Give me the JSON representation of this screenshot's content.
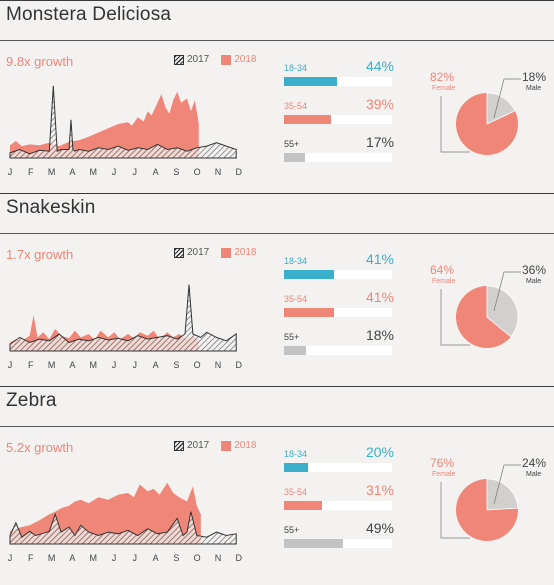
{
  "legend": {
    "label_2017": "2017",
    "label_2018": "2018"
  },
  "months": [
    "J",
    "F",
    "M",
    "A",
    "M",
    "J",
    "J",
    "A",
    "S",
    "O",
    "N",
    "D"
  ],
  "colors": {
    "accent_2018": "#ef8677",
    "age_18_34": "#3aaecb",
    "age_35_54": "#ef8677",
    "age_55_plus": "#c3c3c3",
    "female": "#ef8677",
    "male": "#d2d0ce"
  },
  "sections": [
    {
      "title": "Monstera Deliciosa",
      "growth": "9.8x growth",
      "ages": [
        {
          "label": "18-34",
          "pct": "44%",
          "value": 44
        },
        {
          "label": "35-54",
          "pct": "39%",
          "value": 39
        },
        {
          "label": "55+",
          "pct": "17%",
          "value": 17
        }
      ],
      "gender": {
        "female_pct": "82%",
        "female_label": "Female",
        "female_value": 82,
        "male_pct": "18%",
        "male_label": "Male",
        "male_value": 18
      }
    },
    {
      "title": "Snakeskin",
      "growth": "1.7x growth",
      "ages": [
        {
          "label": "18-34",
          "pct": "41%",
          "value": 41
        },
        {
          "label": "35-54",
          "pct": "41%",
          "value": 41
        },
        {
          "label": "55+",
          "pct": "18%",
          "value": 18
        }
      ],
      "gender": {
        "female_pct": "64%",
        "female_label": "Female",
        "female_value": 64,
        "male_pct": "36%",
        "male_label": "Male",
        "male_value": 36
      }
    },
    {
      "title": "Zebra",
      "growth": "5.2x growth",
      "ages": [
        {
          "label": "18-34",
          "pct": "20%",
          "value": 20
        },
        {
          "label": "35-54",
          "pct": "31%",
          "value": 31
        },
        {
          "label": "55+",
          "pct": "49%",
          "value": 49
        }
      ],
      "gender": {
        "female_pct": "76%",
        "female_label": "Female",
        "female_value": 76,
        "male_pct": "24%",
        "male_label": "Male",
        "male_value": 24
      }
    }
  ],
  "chart_data": [
    {
      "type": "area",
      "x_domain": [
        0,
        12
      ],
      "ylim": [
        0,
        100
      ],
      "series": [
        {
          "name": "2017",
          "x": [
            0,
            0.5,
            1,
            1.5,
            2,
            2.2,
            2.4,
            2.6,
            3,
            3.1,
            3.2,
            3.3,
            3.5,
            4,
            4.5,
            5,
            5.5,
            6,
            6.5,
            7,
            7.5,
            8,
            8.5,
            9,
            9.5,
            10,
            10.5,
            11,
            11.5
          ],
          "values": [
            6,
            10,
            5,
            9,
            8,
            85,
            8,
            10,
            10,
            45,
            10,
            8,
            10,
            8,
            12,
            10,
            14,
            9,
            12,
            10,
            16,
            10,
            12,
            8,
            12,
            14,
            18,
            14,
            10
          ]
        },
        {
          "name": "2018",
          "x": [
            0,
            0.3,
            0.6,
            1,
            1.5,
            2,
            2.5,
            3,
            3.5,
            4,
            4.5,
            5,
            5.5,
            6,
            6.2,
            6.5,
            6.8,
            7,
            7.2,
            7.5,
            7.7,
            7.9,
            8.1,
            8.3,
            8.5,
            8.7,
            9,
            9.2,
            9.4,
            9.6
          ],
          "values": [
            15,
            20,
            14,
            16,
            15,
            18,
            14,
            19,
            21,
            25,
            30,
            35,
            40,
            42,
            38,
            48,
            43,
            55,
            50,
            65,
            75,
            60,
            52,
            68,
            78,
            65,
            70,
            55,
            68,
            40
          ]
        }
      ]
    },
    {
      "type": "area",
      "x_domain": [
        0,
        12
      ],
      "ylim": [
        0,
        100
      ],
      "series": [
        {
          "name": "2017",
          "x": [
            0,
            0.5,
            1,
            1.5,
            2,
            2.5,
            3,
            3.5,
            4,
            4.5,
            5,
            5.5,
            6,
            6.5,
            7,
            7.5,
            8,
            8.5,
            8.9,
            9.1,
            9.3,
            9.7,
            10,
            10.5,
            11,
            11.5
          ],
          "values": [
            8,
            16,
            10,
            14,
            12,
            20,
            10,
            14,
            12,
            16,
            13,
            15,
            12,
            18,
            14,
            16,
            18,
            14,
            20,
            78,
            20,
            16,
            22,
            16,
            12,
            20
          ]
        },
        {
          "name": "2018",
          "x": [
            0,
            0.3,
            0.6,
            1,
            1.2,
            1.4,
            1.7,
            2,
            2.3,
            2.6,
            3,
            3.3,
            3.6,
            4,
            4.3,
            4.6,
            5,
            5.3,
            5.6,
            6,
            6.3,
            6.6,
            7,
            7.3,
            7.6,
            8,
            8.3,
            8.6,
            9,
            9.3,
            9.6
          ],
          "values": [
            10,
            14,
            12,
            18,
            42,
            16,
            22,
            14,
            26,
            18,
            15,
            24,
            16,
            20,
            13,
            24,
            16,
            22,
            14,
            20,
            15,
            22,
            18,
            24,
            14,
            22,
            16,
            20,
            14,
            18,
            12
          ]
        }
      ]
    },
    {
      "type": "area",
      "x_domain": [
        0,
        12
      ],
      "ylim": [
        0,
        100
      ],
      "series": [
        {
          "name": "2017",
          "x": [
            0,
            0.3,
            0.6,
            1,
            1.3,
            1.6,
            2,
            2.3,
            2.6,
            3,
            3.3,
            3.6,
            4,
            4.5,
            5,
            5.5,
            6,
            6.5,
            7,
            7.5,
            8,
            8.5,
            8.8,
            9,
            9.2,
            9.5,
            10,
            10.5,
            11,
            11.5
          ],
          "values": [
            10,
            25,
            8,
            15,
            10,
            12,
            15,
            35,
            14,
            20,
            10,
            22,
            14,
            10,
            14,
            12,
            16,
            10,
            18,
            12,
            14,
            30,
            10,
            14,
            38,
            10,
            8,
            14,
            10,
            12
          ]
        },
        {
          "name": "2018",
          "x": [
            0,
            0.3,
            0.6,
            1,
            1.5,
            2,
            2.3,
            2.6,
            3,
            3.3,
            3.6,
            4,
            4.5,
            5,
            5.5,
            6,
            6.3,
            6.6,
            7,
            7.3,
            7.6,
            8,
            8.3,
            8.6,
            9,
            9.3,
            9.5,
            9.7
          ],
          "values": [
            15,
            18,
            20,
            22,
            28,
            35,
            38,
            42,
            45,
            50,
            52,
            48,
            55,
            52,
            58,
            60,
            55,
            70,
            62,
            65,
            58,
            72,
            60,
            55,
            50,
            68,
            45,
            35
          ]
        }
      ]
    }
  ]
}
